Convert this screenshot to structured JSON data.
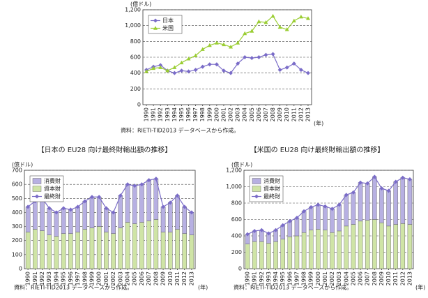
{
  "chart_data": [
    {
      "type": "line",
      "ylabel": "(億ドル)",
      "xlabel": "(年)",
      "source": "資料：RIETI-TID2013 データベースから作成。",
      "legend": "upper left",
      "grid": true,
      "categories": [
        "1990",
        "1991",
        "1992",
        "1993",
        "1994",
        "1995",
        "1996",
        "1997",
        "1998",
        "1999",
        "2000",
        "2001",
        "2002",
        "2003",
        "2004",
        "2005",
        "2006",
        "2007",
        "2008",
        "2009",
        "2010",
        "2011",
        "2012",
        "2013"
      ],
      "ylim": [
        0,
        1200
      ],
      "yticks": [
        0,
        200,
        400,
        600,
        800,
        {
          "value": 1000,
          "label": "1,000"
        },
        {
          "value": 1200,
          "label": "1,200"
        }
      ],
      "series": [
        {
          "name": "日本",
          "color": "#7a6cc8",
          "marker": "diamond",
          "values": [
            440,
            480,
            500,
            430,
            400,
            430,
            420,
            440,
            480,
            510,
            510,
            430,
            400,
            520,
            600,
            590,
            600,
            630,
            640,
            440,
            470,
            520,
            440,
            400
          ]
        },
        {
          "name": "米国",
          "color": "#9acd32",
          "marker": "triangle",
          "values": [
            420,
            460,
            470,
            430,
            470,
            530,
            580,
            620,
            700,
            750,
            780,
            760,
            730,
            780,
            900,
            930,
            1050,
            1040,
            1120,
            980,
            950,
            1060,
            1110,
            1090
          ]
        }
      ]
    },
    {
      "type": "bar",
      "title": "【日本の EU28 向け最終財輸出額の推移】",
      "ylabel": "(億ドル)",
      "xlabel": "(年)",
      "source": "資料：RIETI-TID2013 データベースから作成。",
      "legend": "upper left",
      "grid": true,
      "stacked": true,
      "categories": [
        "1990",
        "1991",
        "1992",
        "1993",
        "1994",
        "1995",
        "1996",
        "1997",
        "1998",
        "1999",
        "2000",
        "2001",
        "2002",
        "2003",
        "2004",
        "2005",
        "2006",
        "2007",
        "2008",
        "2009",
        "2010",
        "2011",
        "2012",
        "2013"
      ],
      "ylim": [
        0,
        700
      ],
      "yticks": [
        0,
        100,
        200,
        300,
        400,
        500,
        600,
        700
      ],
      "series": [
        {
          "name": "消費財",
          "color": "#b7b0e2",
          "values": [
            180,
            200,
            230,
            190,
            170,
            180,
            170,
            180,
            200,
            220,
            210,
            170,
            150,
            230,
            270,
            270,
            270,
            290,
            290,
            180,
            210,
            240,
            190,
            160
          ]
        },
        {
          "name": "資本財",
          "color": "#cfe4a6",
          "values": [
            260,
            280,
            270,
            240,
            230,
            250,
            250,
            260,
            280,
            290,
            300,
            260,
            250,
            290,
            330,
            320,
            330,
            340,
            350,
            260,
            260,
            280,
            250,
            240
          ]
        },
        {
          "name": "最終財",
          "color": "#7a6cc8",
          "type": "line",
          "marker": "diamond",
          "values": [
            440,
            480,
            500,
            430,
            400,
            430,
            420,
            440,
            480,
            510,
            510,
            430,
            400,
            520,
            600,
            590,
            600,
            630,
            640,
            440,
            470,
            520,
            440,
            400
          ]
        }
      ]
    },
    {
      "type": "bar",
      "title": "【米国の EU28 向け最終財輸出額の推移】",
      "ylabel": "(億ドル)",
      "xlabel": "(年)",
      "source": "資料：RIETI-TID2013 データベースから作成。",
      "legend": "upper left",
      "grid": true,
      "stacked": true,
      "categories": [
        "1990",
        "1991",
        "1992",
        "1993",
        "1994",
        "1995",
        "1996",
        "1997",
        "1998",
        "1999",
        "2000",
        "2001",
        "2002",
        "2003",
        "2004",
        "2005",
        "2006",
        "2007",
        "2008",
        "2009",
        "2010",
        "2011",
        "2012",
        "2013"
      ],
      "ylim": [
        0,
        1200
      ],
      "yticks": [
        0,
        200,
        400,
        600,
        800,
        {
          "value": 1000,
          "label": "1,000"
        },
        {
          "value": 1200,
          "label": "1,200"
        }
      ],
      "series": [
        {
          "name": "消費財",
          "color": "#b7b0e2",
          "values": [
            120,
            130,
            140,
            120,
            140,
            170,
            190,
            220,
            260,
            280,
            300,
            290,
            290,
            320,
            380,
            390,
            470,
            450,
            520,
            420,
            430,
            520,
            560,
            550
          ]
        },
        {
          "name": "資本財",
          "color": "#cfe4a6",
          "values": [
            300,
            330,
            330,
            310,
            330,
            360,
            390,
            400,
            440,
            470,
            480,
            470,
            440,
            460,
            520,
            540,
            580,
            590,
            600,
            560,
            520,
            540,
            550,
            540
          ]
        },
        {
          "name": "最終財",
          "color": "#7a6cc8",
          "type": "line",
          "marker": "diamond",
          "values": [
            420,
            460,
            470,
            430,
            470,
            530,
            580,
            620,
            700,
            750,
            780,
            760,
            730,
            780,
            900,
            930,
            1050,
            1040,
            1120,
            980,
            950,
            1060,
            1110,
            1090
          ]
        }
      ]
    }
  ]
}
